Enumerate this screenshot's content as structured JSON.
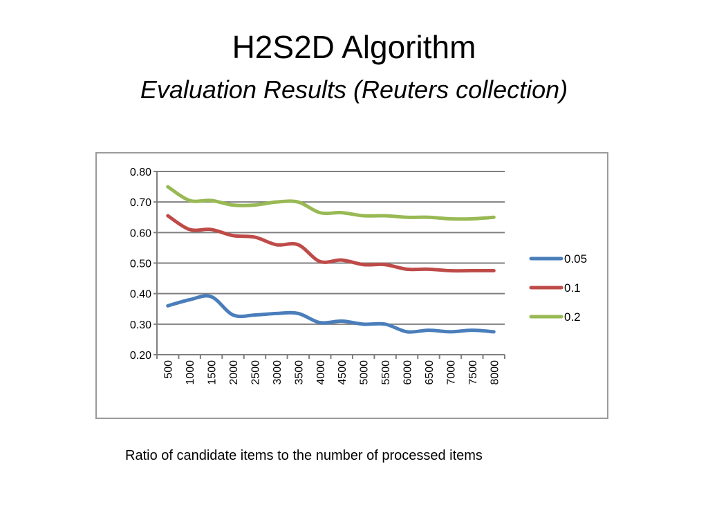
{
  "slide": {
    "title": "H2S2D Algorithm",
    "subtitle": "Evaluation Results (Reuters collection)",
    "caption": "Ratio of candidate items to the number of processed items"
  },
  "chart_data": {
    "type": "line",
    "title": "",
    "xlabel": "",
    "ylabel": "",
    "x": [
      500,
      1000,
      1500,
      2000,
      2500,
      3000,
      3500,
      4000,
      4500,
      5000,
      5500,
      6000,
      6500,
      7000,
      7500,
      8000
    ],
    "x_tick_labels": [
      "500",
      "1000",
      "1500",
      "2000",
      "2500",
      "3000",
      "3500",
      "4000",
      "4500",
      "5000",
      "5500",
      "6000",
      "6500",
      "7000",
      "7500",
      "8000"
    ],
    "ylim": [
      0.2,
      0.8
    ],
    "y_ticks": [
      0.2,
      0.3,
      0.4,
      0.5,
      0.6,
      0.7,
      0.8
    ],
    "y_tick_labels": [
      "0.20",
      "0.30",
      "0.40",
      "0.50",
      "0.60",
      "0.70",
      "0.80"
    ],
    "grid": true,
    "legend_position": "right",
    "series": [
      {
        "name": "0.05",
        "color": "#4a7ebb",
        "values": [
          0.36,
          0.38,
          0.39,
          0.33,
          0.33,
          0.335,
          0.335,
          0.305,
          0.31,
          0.3,
          0.3,
          0.275,
          0.28,
          0.275,
          0.28,
          0.275
        ]
      },
      {
        "name": "0.1",
        "color": "#be4b48",
        "values": [
          0.655,
          0.61,
          0.61,
          0.59,
          0.585,
          0.56,
          0.56,
          0.505,
          0.51,
          0.495,
          0.495,
          0.48,
          0.48,
          0.475,
          0.475,
          0.475
        ]
      },
      {
        "name": "0.2",
        "color": "#98b954",
        "values": [
          0.75,
          0.705,
          0.705,
          0.69,
          0.69,
          0.7,
          0.7,
          0.665,
          0.665,
          0.655,
          0.655,
          0.65,
          0.65,
          0.645,
          0.645,
          0.65
        ]
      }
    ]
  }
}
